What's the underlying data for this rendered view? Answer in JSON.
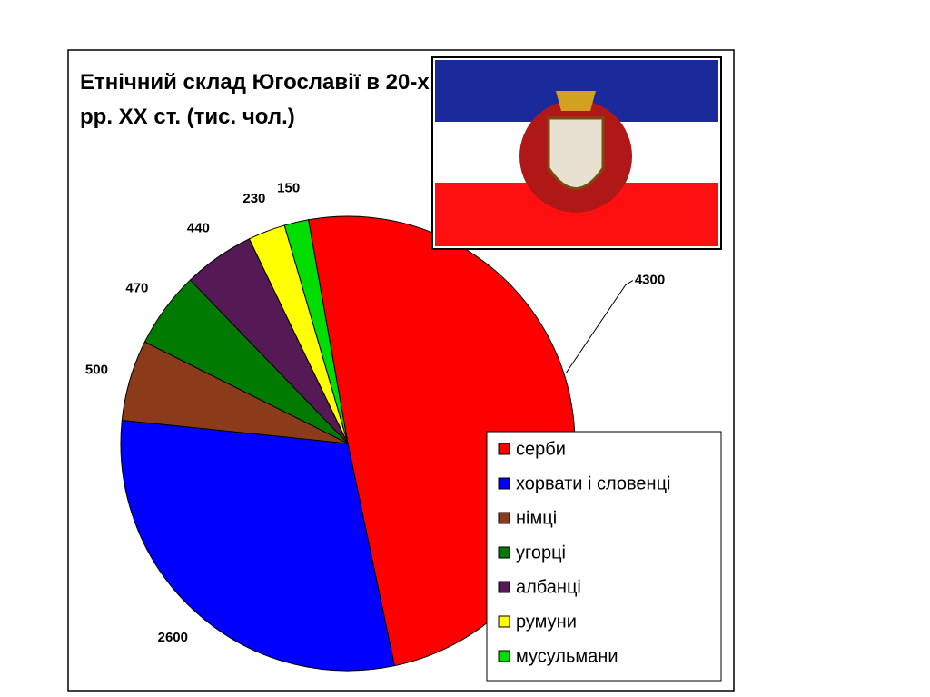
{
  "chart_data": {
    "type": "pie",
    "title": "Етнічний склад Югославії в 20-х рр. ХХ ст. (тис. чол.)",
    "series": [
      {
        "name": "серби",
        "color": "#ff0000",
        "values": [
          4300
        ]
      },
      {
        "name": "хорвати і словенці",
        "color": "#0000ff",
        "values": [
          2600
        ]
      },
      {
        "name": "німці",
        "color": "#8b3a1a",
        "values": [
          500
        ]
      },
      {
        "name": "угорці",
        "color": "#007a00",
        "values": [
          470
        ]
      },
      {
        "name": "албанці",
        "color": "#551a55",
        "values": [
          440
        ]
      },
      {
        "name": "румуни",
        "color": "#ffff00",
        "values": [
          230
        ]
      },
      {
        "name": "мусульмани",
        "color": "#00dd00",
        "values": [
          150
        ]
      }
    ]
  }
}
